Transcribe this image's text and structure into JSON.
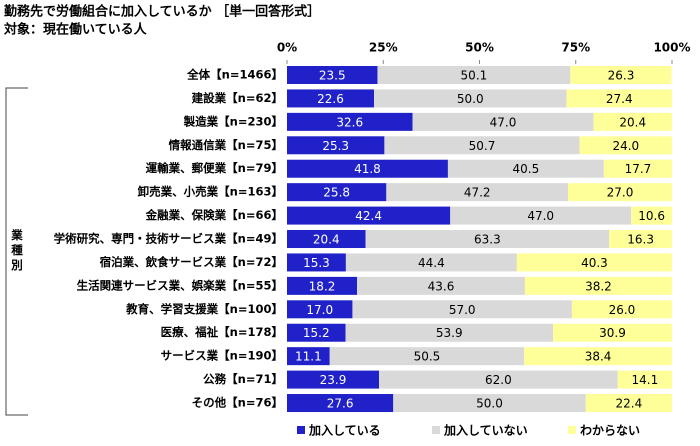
{
  "chart_data": {
    "type": "stacked-barh",
    "title": "勤務先で労働組合に加入しているか ［単一回答形式］",
    "subtitle": "対象：現在働いている人",
    "group_label": "業種別",
    "categories": [
      "全体【n=1466】",
      "建設業【n=62】",
      "製造業【n=230】",
      "情報通信業【n=75】",
      "運輸業、郵便業【n=79】",
      "卸売業、小売業【n=163】",
      "金融業、保険業【n=66】",
      "学術研究、専門・技術サービス業【n=49】",
      "宿泊業、飲食サービス業【n=72】",
      "生活関連サービス業、娯楽業【n=55】",
      "教育、学習支援業【n=100】",
      "医療、福祉【n=178】",
      "サービス業【n=190】",
      "公務【n=71】",
      "その他【n=76】"
    ],
    "series": [
      {
        "name": "加入している",
        "color": "#2121c9",
        "label_color": "#ffffff",
        "values": [
          23.5,
          22.6,
          32.6,
          25.3,
          41.8,
          25.8,
          42.4,
          20.4,
          15.3,
          18.2,
          17.0,
          15.2,
          11.1,
          23.9,
          27.6
        ],
        "value_labels": [
          "23.5",
          "22.6",
          "32.6",
          "25.3",
          "41.8",
          "25.8",
          "42.4",
          "20.4",
          "15.3",
          "18.2",
          "17.0",
          "15.2",
          "11.1",
          "23.9",
          "27.6"
        ]
      },
      {
        "name": "加入していない",
        "color": "#d9d9d9",
        "label_color": "#000000",
        "values": [
          50.1,
          50.0,
          47.0,
          50.7,
          40.5,
          47.2,
          47.0,
          63.3,
          44.4,
          43.6,
          57.0,
          53.9,
          50.5,
          62.0,
          50.0
        ],
        "value_labels": [
          "50.1",
          "50.0",
          "47.0",
          "50.7",
          "40.5",
          "47.2",
          "47.0",
          "63.3",
          "44.4",
          "43.6",
          "57.0",
          "53.9",
          "50.5",
          "62.0",
          "50.0"
        ]
      },
      {
        "name": "わからない",
        "color": "#ffff99",
        "label_color": "#000000",
        "values": [
          26.3,
          27.4,
          20.4,
          24.0,
          17.7,
          27.0,
          10.6,
          16.3,
          40.3,
          38.2,
          26.0,
          30.9,
          38.4,
          14.1,
          22.4
        ],
        "value_labels": [
          "26.3",
          "27.4",
          "20.4",
          "24.0",
          "17.7",
          "27.0",
          "10.6",
          "16.3",
          "40.3",
          "38.2",
          "26.0",
          "30.9",
          "38.4",
          "14.1",
          "22.4"
        ]
      }
    ],
    "xlim": [
      0,
      100
    ],
    "xticks": [
      {
        "value": 0,
        "label": "0%"
      },
      {
        "value": 25,
        "label": "25%"
      },
      {
        "value": 50,
        "label": "50%"
      },
      {
        "value": 75,
        "label": "75%"
      },
      {
        "value": 100,
        "label": "100%"
      }
    ],
    "legend": "bottom"
  }
}
